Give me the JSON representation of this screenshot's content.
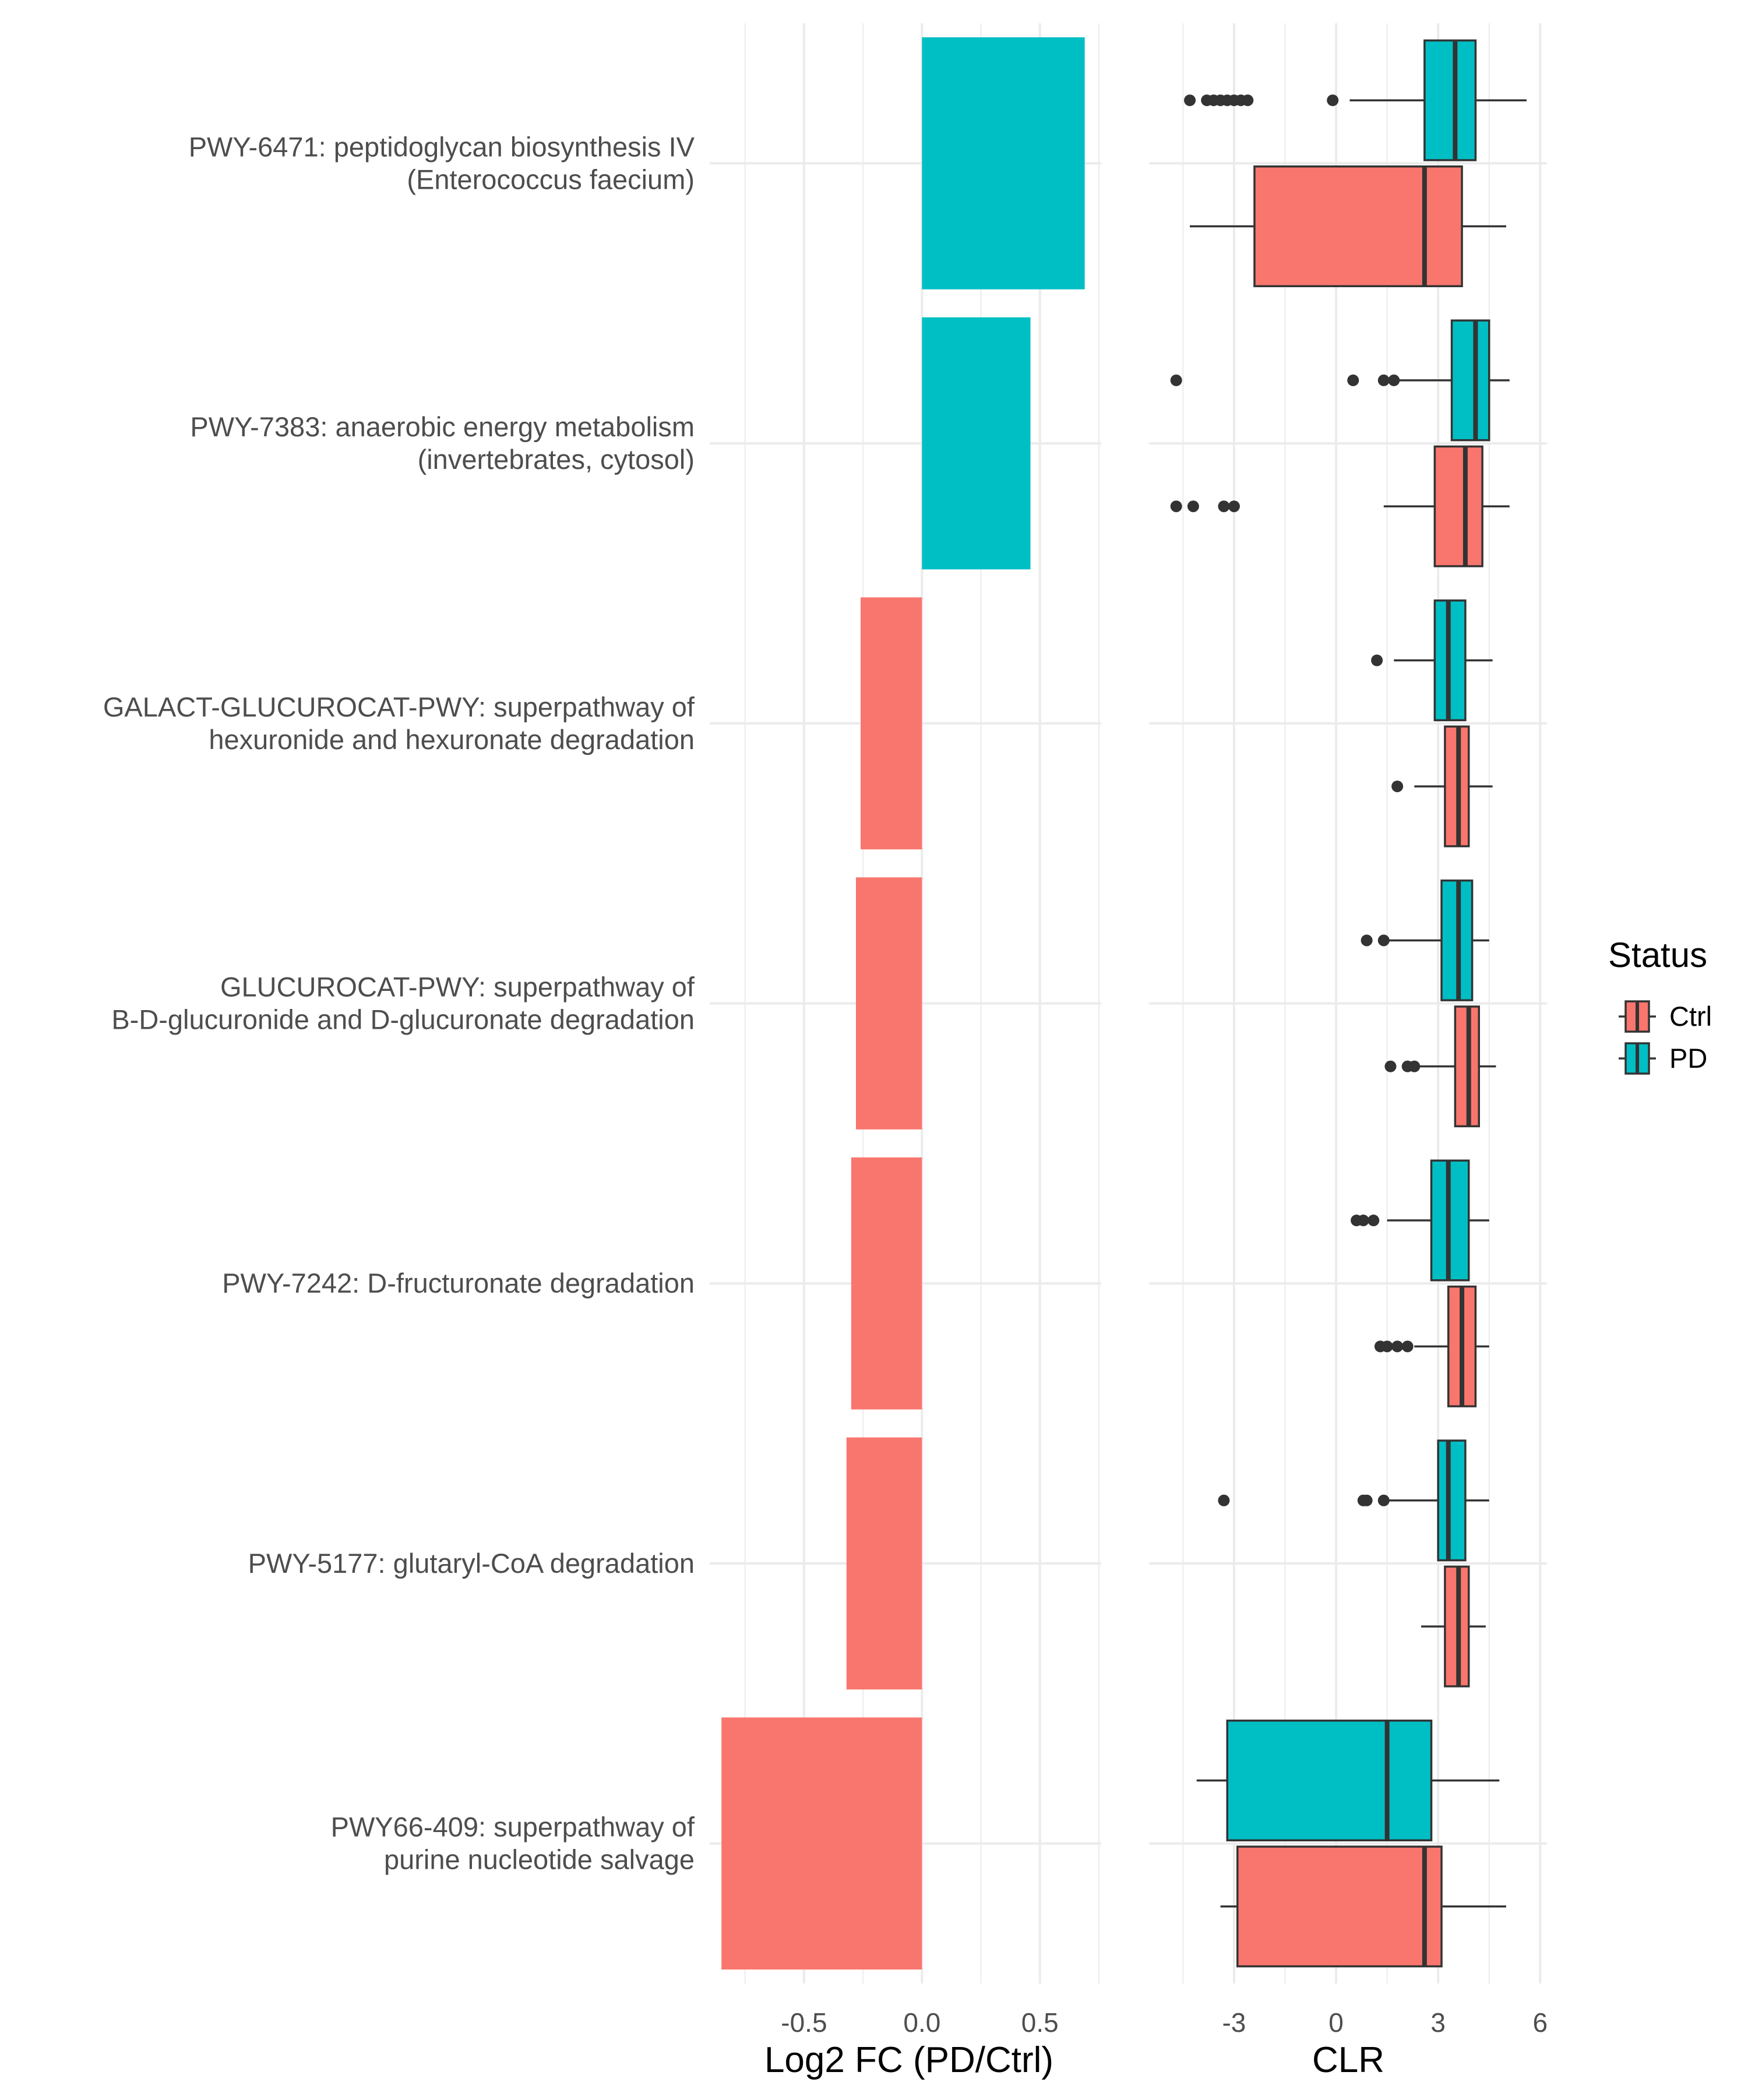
{
  "colors": {
    "Ctrl": "#F8766D",
    "PD": "#00BFC4",
    "grid": "#EBEBEB",
    "text": "#4D4D4D",
    "outline": "#333333"
  },
  "chart_data": [
    {
      "type": "bar",
      "orientation": "horizontal",
      "categories": [
        "PWY-6471: peptidoglycan biosynthesis IV\n(Enterococcus faecium)",
        "PWY-7383: anaerobic energy metabolism\n(invertebrates, cytosol)",
        "GALACT-GLUCUROCAT-PWY: superpathway of\nhexuronide and hexuronate degradation",
        "GLUCUROCAT-PWY: superpathway of\nB-D-glucuronide and D-glucuronate degradation",
        "PWY-7242: D-fructuronate degradation",
        "PWY-5177: glutaryl-CoA degradation",
        "PWY66-409: superpathway of\npurine nucleotide salvage"
      ],
      "values": [
        0.69,
        0.46,
        -0.26,
        -0.28,
        -0.3,
        -0.32,
        -0.85
      ],
      "bar_colors": [
        "#00BFC4",
        "#00BFC4",
        "#F8766D",
        "#F8766D",
        "#F8766D",
        "#F8766D",
        "#F8766D"
      ],
      "xlabel": "Log2 FC (PD/Ctrl)",
      "ylabel": "",
      "xlim": [
        -0.9,
        0.76
      ],
      "xticks": [
        -0.5,
        0.0,
        0.5
      ],
      "xtick_labels": [
        "-0.5",
        "0.0",
        "0.5"
      ],
      "grid": true
    },
    {
      "type": "box",
      "orientation": "horizontal",
      "xlabel": "CLR",
      "xlim": [
        -5.5,
        6.2
      ],
      "xticks": [
        -3,
        0,
        3,
        6
      ],
      "xtick_labels": [
        "-3",
        "0",
        "3",
        "6"
      ],
      "grid": true,
      "legend": {
        "title": "Status",
        "entries": [
          "Ctrl",
          "PD"
        ],
        "position": "right"
      },
      "groups": [
        {
          "category": "PWY-6471: peptidoglycan biosynthesis IV (Enterococcus faecium)",
          "PD": {
            "whisker_low": 0.4,
            "q1": 2.6,
            "median": 3.5,
            "q3": 4.1,
            "whisker_high": 5.6,
            "outliers": [
              -4.3,
              -3.8,
              -3.6,
              -3.4,
              -3.2,
              -3.0,
              -2.8,
              -2.6,
              -0.1
            ]
          },
          "Ctrl": {
            "whisker_low": -4.3,
            "q1": -2.4,
            "median": 2.6,
            "q3": 3.7,
            "whisker_high": 5.0,
            "outliers": []
          }
        },
        {
          "category": "PWY-7383: anaerobic energy metabolism (invertebrates, cytosol)",
          "PD": {
            "whisker_low": 1.7,
            "q1": 3.4,
            "median": 4.1,
            "q3": 4.5,
            "whisker_high": 5.1,
            "outliers": [
              -4.7,
              0.5,
              1.4,
              1.7
            ]
          },
          "Ctrl": {
            "whisker_low": 1.4,
            "q1": 2.9,
            "median": 3.8,
            "q3": 4.3,
            "whisker_high": 5.1,
            "outliers": [
              -4.7,
              -4.2,
              -3.3,
              -3.0
            ]
          }
        },
        {
          "category": "GALACT-GLUCUROCAT-PWY: superpathway of hexuronide and hexuronate degradation",
          "PD": {
            "whisker_low": 1.7,
            "q1": 2.9,
            "median": 3.3,
            "q3": 3.8,
            "whisker_high": 4.6,
            "outliers": [
              1.2
            ]
          },
          "Ctrl": {
            "whisker_low": 2.3,
            "q1": 3.2,
            "median": 3.6,
            "q3": 3.9,
            "whisker_high": 4.6,
            "outliers": [
              1.8
            ]
          }
        },
        {
          "category": "GLUCUROCAT-PWY: superpathway of B-D-glucuronide and D-glucuronate degradation",
          "PD": {
            "whisker_low": 1.5,
            "q1": 3.1,
            "median": 3.6,
            "q3": 4.0,
            "whisker_high": 4.5,
            "outliers": [
              0.9,
              1.4
            ]
          },
          "Ctrl": {
            "whisker_low": 2.3,
            "q1": 3.5,
            "median": 3.9,
            "q3": 4.2,
            "whisker_high": 4.7,
            "outliers": [
              1.6,
              2.1,
              2.3
            ]
          }
        },
        {
          "category": "PWY-7242: D-fructuronate degradation",
          "PD": {
            "whisker_low": 1.5,
            "q1": 2.8,
            "median": 3.3,
            "q3": 3.9,
            "whisker_high": 4.5,
            "outliers": [
              0.6,
              0.8,
              1.1
            ]
          },
          "Ctrl": {
            "whisker_low": 2.3,
            "q1": 3.3,
            "median": 3.7,
            "q3": 4.1,
            "whisker_high": 4.5,
            "outliers": [
              1.3,
              1.5,
              1.8,
              2.1
            ]
          }
        },
        {
          "category": "PWY-5177: glutaryl-CoA degradation",
          "PD": {
            "whisker_low": 1.5,
            "q1": 3.0,
            "median": 3.3,
            "q3": 3.8,
            "whisker_high": 4.5,
            "outliers": [
              -3.3,
              0.8,
              0.9,
              1.4
            ]
          },
          "Ctrl": {
            "whisker_low": 2.5,
            "q1": 3.2,
            "median": 3.6,
            "q3": 3.9,
            "whisker_high": 4.4,
            "outliers": []
          }
        },
        {
          "category": "PWY66-409: superpathway of purine nucleotide salvage",
          "PD": {
            "whisker_low": -4.1,
            "q1": -3.2,
            "median": 1.5,
            "q3": 2.8,
            "whisker_high": 4.8,
            "outliers": []
          },
          "Ctrl": {
            "whisker_low": -3.4,
            "q1": -2.9,
            "median": 2.6,
            "q3": 3.1,
            "whisker_high": 5.0,
            "outliers": []
          }
        }
      ]
    }
  ]
}
